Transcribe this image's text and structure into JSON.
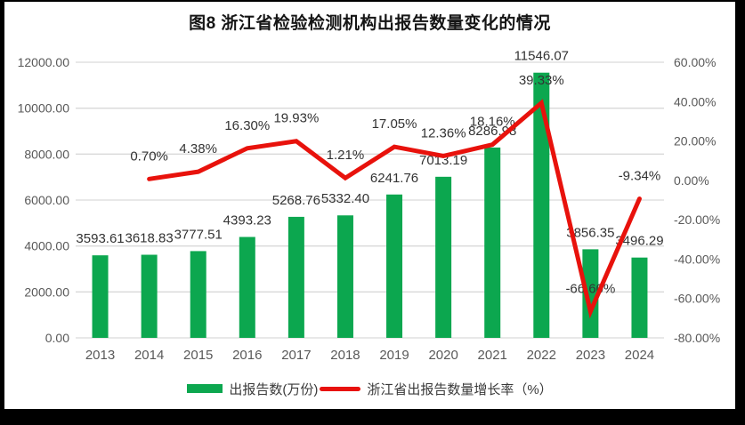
{
  "chart_data": {
    "type": "combo",
    "title": "图8 浙江省检验检测机构出报告数量变化的情况",
    "categories": [
      "2013",
      "2014",
      "2015",
      "2016",
      "2017",
      "2018",
      "2019",
      "2020",
      "2021",
      "2022",
      "2023",
      "2024"
    ],
    "series": [
      {
        "name": "出报告数(万份)",
        "type": "bar",
        "axis": "left",
        "color": "#0ca74f",
        "values": [
          3593.61,
          3618.83,
          3777.51,
          4393.23,
          5268.76,
          5332.4,
          6241.76,
          7013.19,
          8286.98,
          11546.07,
          3856.35,
          3496.29
        ],
        "labels": [
          "3593.61",
          "3618.83",
          "3777.51",
          "4393.23",
          "5268.76",
          "5332.40",
          "6241.76",
          "7013.19",
          "8286.98",
          "11546.07",
          "3856.35",
          "3496.29"
        ]
      },
      {
        "name": "浙江省出报告数量增长率（%）",
        "type": "line",
        "axis": "right",
        "color": "#e8120c",
        "values": [
          null,
          0.7,
          4.38,
          16.3,
          19.93,
          1.21,
          17.05,
          12.36,
          18.16,
          39.33,
          -66.6,
          -9.34
        ],
        "labels": [
          null,
          "0.70%",
          "4.38%",
          "16.30%",
          "19.93%",
          "1.21%",
          "17.05%",
          "12.36%",
          "18.16%",
          "39.33%",
          "-66.60%",
          "-9.34%"
        ]
      }
    ],
    "left_axis": {
      "min": 0,
      "max": 12000,
      "step": 2000,
      "ticks": [
        "12000.00",
        "10000.00",
        "8000.00",
        "6000.00",
        "4000.00",
        "2000.00",
        "0.00"
      ]
    },
    "right_axis": {
      "min": -80,
      "max": 60,
      "step": 20,
      "ticks": [
        "60.00%",
        "40.00%",
        "20.00%",
        "0.00%",
        "-20.00%",
        "-40.00%",
        "-60.00%",
        "-80.00%"
      ]
    },
    "grid": true,
    "legend_position": "bottom",
    "colors": {
      "gridline": "#d9d9d9",
      "axis_text": "#595959",
      "data_label_text": "#333333",
      "title_text": "#151515",
      "background": "#ffffff",
      "frame": "#000000"
    }
  }
}
